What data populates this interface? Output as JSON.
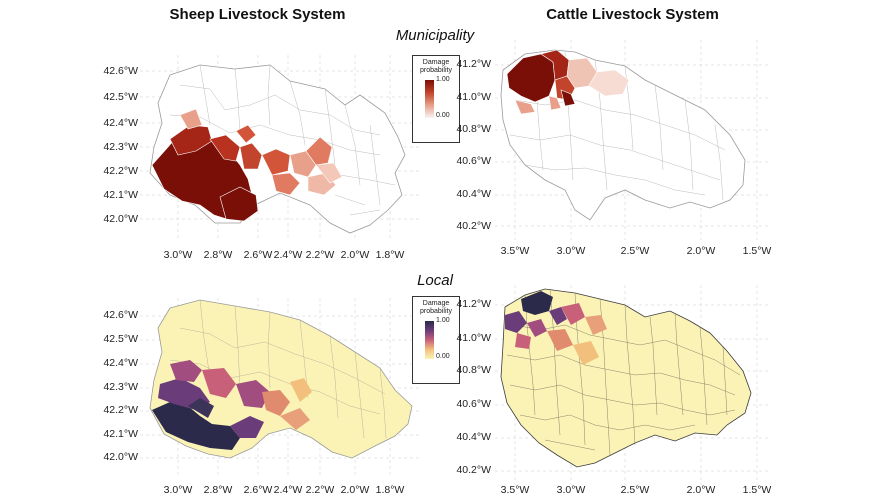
{
  "titles": {
    "sheep": "Sheep Livestock System",
    "cattle": "Cattle Livestock System",
    "municipality": "Municipality",
    "local": "Local"
  },
  "legend": {
    "title_line1": "Damage",
    "title_line2": "probability",
    "max": "1.00",
    "min": "0.00",
    "municipality_colors": [
      "#f7f4f2",
      "#e8a08a",
      "#c2442c",
      "#7a0f08"
    ],
    "local_colors": [
      "#fbf3b6",
      "#f2c07c",
      "#c8607a",
      "#6a3d7a",
      "#2b2a4a"
    ]
  },
  "sheep_axes": {
    "y": [
      "42.6°W",
      "42.5°W",
      "42.4°W",
      "42.3°W",
      "42.2°W",
      "42.1°W",
      "42.0°W"
    ],
    "x": [
      "3.0°W",
      "2.8°W",
      "2.6°W",
      "2.4°W",
      "2.2°W",
      "2.0°W",
      "1.8°W"
    ]
  },
  "cattle_axes": {
    "y": [
      "41.2°W",
      "41.0°W",
      "40.8°W",
      "40.6°W",
      "40.4°W",
      "40.2°W"
    ],
    "x": [
      "3.5°W",
      "3.0°W",
      "2.5°W",
      "2.0°W",
      "1.5°W"
    ]
  }
}
